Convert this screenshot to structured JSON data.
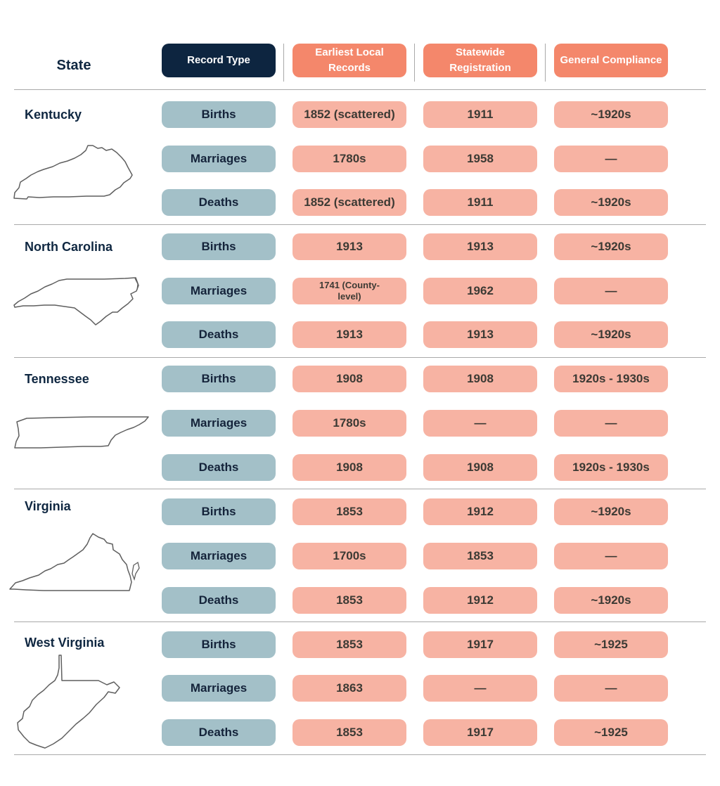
{
  "header": {
    "state": "State",
    "record_type": "Record Type",
    "earliest_local": "Earliest Local Records",
    "statewide": "Statewide Registration",
    "compliance": "General Compliance"
  },
  "states": [
    {
      "name": "Kentucky",
      "map_icon": "kentucky-outline",
      "rows": [
        {
          "type": "Births",
          "earliest": "1852 (scattered)",
          "statewide": "1911",
          "compliance": "~1920s"
        },
        {
          "type": "Marriages",
          "earliest": "1780s",
          "statewide": "1958",
          "compliance": "—"
        },
        {
          "type": "Deaths",
          "earliest": "1852 (scattered)",
          "statewide": "1911",
          "compliance": "~1920s"
        }
      ]
    },
    {
      "name": "North Carolina",
      "map_icon": "north-carolina-outline",
      "rows": [
        {
          "type": "Births",
          "earliest": "1913",
          "statewide": "1913",
          "compliance": "~1920s"
        },
        {
          "type": "Marriages",
          "earliest": "1741 (County-level)",
          "statewide": "1962",
          "compliance": "—"
        },
        {
          "type": "Deaths",
          "earliest": "1913",
          "statewide": "1913",
          "compliance": "~1920s"
        }
      ]
    },
    {
      "name": "Tennessee",
      "map_icon": "tennessee-outline",
      "rows": [
        {
          "type": "Births",
          "earliest": "1908",
          "statewide": "1908",
          "compliance": "1920s - 1930s"
        },
        {
          "type": "Marriages",
          "earliest": "1780s",
          "statewide": "—",
          "compliance": "—"
        },
        {
          "type": "Deaths",
          "earliest": "1908",
          "statewide": "1908",
          "compliance": "1920s - 1930s"
        }
      ]
    },
    {
      "name": "Virginia",
      "map_icon": "virginia-outline",
      "rows": [
        {
          "type": "Births",
          "earliest": "1853",
          "statewide": "1912",
          "compliance": "~1920s"
        },
        {
          "type": "Marriages",
          "earliest": "1700s",
          "statewide": "1853",
          "compliance": "—"
        },
        {
          "type": "Deaths",
          "earliest": "1853",
          "statewide": "1912",
          "compliance": "~1920s"
        }
      ]
    },
    {
      "name": "West Virginia",
      "map_icon": "west-virginia-outline",
      "rows": [
        {
          "type": "Births",
          "earliest": "1853",
          "statewide": "1917",
          "compliance": "~1925"
        },
        {
          "type": "Marriages",
          "earliest": "1863",
          "statewide": "—",
          "compliance": "—"
        },
        {
          "type": "Deaths",
          "earliest": "1853",
          "statewide": "1917",
          "compliance": "~1925"
        }
      ]
    }
  ],
  "colors": {
    "header_dark": "#0d2540",
    "header_orange": "#f4876b",
    "record_type_pill": "#a3c0c8",
    "value_pill": "#f7b3a3",
    "state_text": "#0f2741"
  }
}
